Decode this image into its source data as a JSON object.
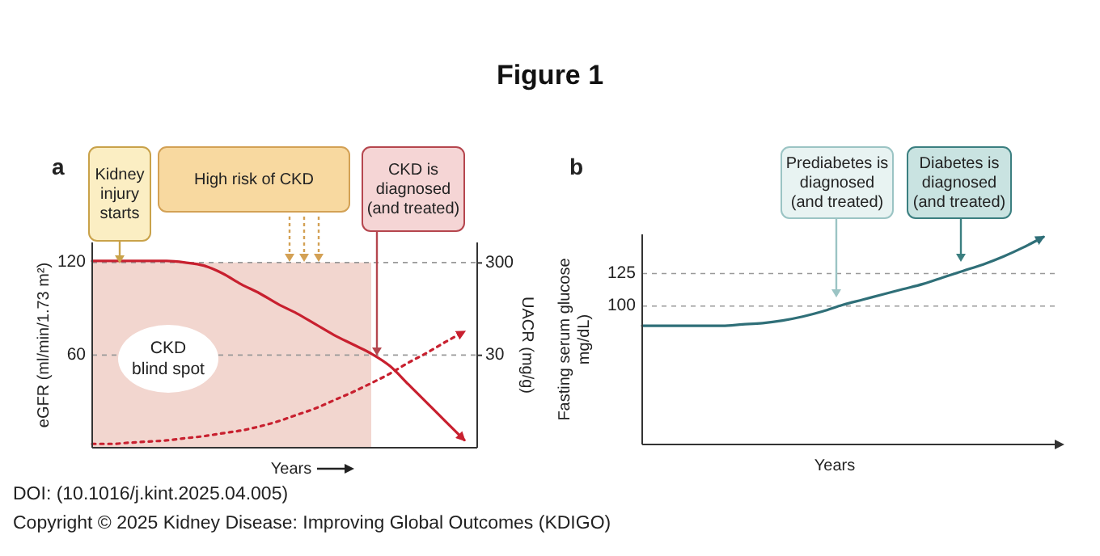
{
  "chart_data": [
    {
      "type": "line",
      "title": "Figure 1",
      "ylabel": "eGFR (ml/min/1.73 m²)",
      "y2label": "UACR (mg/g)",
      "xlabel": "Years",
      "categories": [
        null,
        null,
        null,
        null,
        null,
        null,
        null,
        null,
        null,
        null,
        null,
        null,
        null,
        null,
        null,
        null,
        null,
        null,
        null,
        null,
        null
      ],
      "series": [
        {
          "type": "area",
          "color": "#f2d6cf",
          "values": [
            120,
            120,
            120,
            120,
            120,
            120,
            120,
            120,
            120,
            120,
            120,
            120,
            120,
            120,
            120,
            120,
            null,
            null,
            null,
            null,
            null
          ]
        },
        {
          "color": "#c8202f",
          "line_style": "solid",
          "values": [
            121,
            121,
            121,
            121,
            121,
            120,
            118,
            113,
            106,
            100,
            93,
            87,
            80,
            73,
            67,
            61,
            53,
            41,
            29,
            17,
            5
          ]
        },
        {
          "color": "#c8202f",
          "line_style": "dotted",
          "axis": "y2",
          "values": [
            3.3,
            3.3,
            3.4,
            3.5,
            3.6,
            3.8,
            4,
            4.3,
            4.6,
            5.1,
            5.8,
            6.8,
            8,
            9.8,
            12,
            15,
            19,
            25,
            32,
            42,
            54
          ]
        }
      ],
      "ylim": [
        0,
        133
      ],
      "yticks": [
        60,
        120
      ],
      "y2lim": [
        3,
        500
      ],
      "y2ticks": [
        30,
        300
      ],
      "log": "y2",
      "grid": "y",
      "annotations": [
        "a",
        "Kidney\ninjury\nstarts",
        "High risk of CKD",
        "CKD is\ndiagnosed\n(and treated)",
        "CKD\nblind spot",
        "DOI: (10.1016/j.kint.2025.04.005)",
        "Copyright © 2025 Kidney Disease: Improving Global Outcomes (KDIGO)"
      ]
    },
    {
      "type": "line",
      "ylabel": "Fasting serum glucose\nmg/dL)",
      "xlabel": "Years",
      "categories": [
        null,
        null,
        null,
        null,
        null,
        null,
        null,
        null,
        null,
        null,
        null,
        null,
        null,
        null,
        null,
        null,
        null,
        null,
        null,
        null,
        null
      ],
      "series": [
        {
          "color": "#2f6f78",
          "line_style": "solid",
          "values": [
            85,
            85,
            85,
            85,
            85,
            86,
            87,
            89,
            92,
            96,
            101,
            105,
            109,
            113,
            117,
            122,
            127,
            132,
            138,
            145,
            153
          ]
        }
      ],
      "ylim": [
        -6,
        155
      ],
      "yticks": [
        100,
        125
      ],
      "grid": "y",
      "annotations": [
        "b",
        "Prediabetes is\ndiagnosed\n(and treated)",
        "Diabetes is\ndiagnosed\n(and treated)"
      ]
    }
  ]
}
